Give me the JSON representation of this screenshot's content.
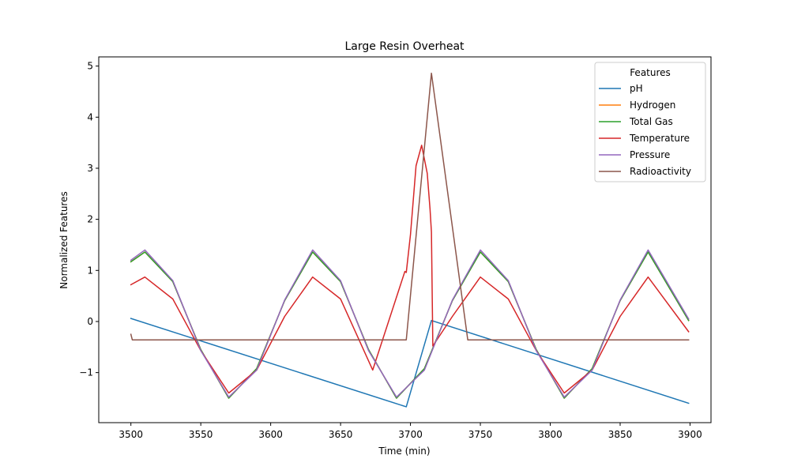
{
  "chart_data": {
    "type": "line",
    "title": "Large Resin Overheat",
    "xlabel": "Time (min)",
    "ylabel": "Normalized Features",
    "xlim": [
      3477,
      3915
    ],
    "ylim": [
      -1.98,
      5.18
    ],
    "x_ticks": [
      3500,
      3550,
      3600,
      3650,
      3700,
      3750,
      3800,
      3850,
      3900
    ],
    "y_ticks": [
      -1,
      0,
      1,
      2,
      3,
      4,
      5
    ],
    "y_tick_labels": [
      "−1",
      "0",
      "1",
      "2",
      "3",
      "4",
      "5"
    ],
    "grid": false,
    "legend": {
      "title": "Features",
      "position": "top-right"
    },
    "series": [
      {
        "name": "pH",
        "color": "#1f77b4",
        "points": [
          [
            3500,
            0.06
          ],
          [
            3697,
            -1.67
          ],
          [
            3715,
            0.02
          ],
          [
            3899,
            -1.6
          ]
        ]
      },
      {
        "name": "Hydrogen",
        "color": "#ff7f0e",
        "points": [
          [
            3500,
            1.17
          ],
          [
            3510,
            1.36
          ],
          [
            3530,
            0.78
          ],
          [
            3550,
            -0.55
          ],
          [
            3570,
            -1.5
          ],
          [
            3590,
            -0.92
          ],
          [
            3610,
            0.41
          ],
          [
            3630,
            1.36
          ],
          [
            3650,
            0.78
          ],
          [
            3670,
            -0.55
          ],
          [
            3690,
            -1.5
          ],
          [
            3710,
            -0.92
          ],
          [
            3730,
            0.41
          ],
          [
            3750,
            1.36
          ],
          [
            3770,
            0.78
          ],
          [
            3790,
            -0.55
          ],
          [
            3810,
            -1.5
          ],
          [
            3830,
            -0.92
          ],
          [
            3850,
            0.41
          ],
          [
            3870,
            1.36
          ],
          [
            3899,
            0.02
          ]
        ]
      },
      {
        "name": "Total Gas",
        "color": "#2ca02c",
        "points": [
          [
            3500,
            1.17
          ],
          [
            3510,
            1.36
          ],
          [
            3530,
            0.78
          ],
          [
            3550,
            -0.55
          ],
          [
            3570,
            -1.5
          ],
          [
            3590,
            -0.92
          ],
          [
            3610,
            0.41
          ],
          [
            3630,
            1.36
          ],
          [
            3650,
            0.78
          ],
          [
            3670,
            -0.55
          ],
          [
            3690,
            -1.5
          ],
          [
            3710,
            -0.92
          ],
          [
            3730,
            0.41
          ],
          [
            3750,
            1.36
          ],
          [
            3770,
            0.78
          ],
          [
            3790,
            -0.55
          ],
          [
            3810,
            -1.5
          ],
          [
            3830,
            -0.92
          ],
          [
            3850,
            0.41
          ],
          [
            3870,
            1.36
          ],
          [
            3899,
            0.02
          ]
        ]
      },
      {
        "name": "Temperature",
        "color": "#d62728",
        "points": [
          [
            3500,
            0.72
          ],
          [
            3510,
            0.87
          ],
          [
            3530,
            0.44
          ],
          [
            3550,
            -0.57
          ],
          [
            3570,
            -1.4
          ],
          [
            3590,
            -0.95
          ],
          [
            3610,
            0.1
          ],
          [
            3630,
            0.87
          ],
          [
            3650,
            0.44
          ],
          [
            3673,
            -0.95
          ],
          [
            3696,
            0.98
          ],
          [
            3697,
            0.96
          ],
          [
            3700,
            1.7
          ],
          [
            3704,
            3.05
          ],
          [
            3708,
            3.45
          ],
          [
            3712,
            2.9
          ],
          [
            3714,
            2.2
          ],
          [
            3715,
            1.75
          ],
          [
            3716,
            -0.48
          ],
          [
            3730,
            0.1
          ],
          [
            3750,
            0.87
          ],
          [
            3770,
            0.44
          ],
          [
            3790,
            -0.57
          ],
          [
            3810,
            -1.4
          ],
          [
            3830,
            -0.95
          ],
          [
            3850,
            0.1
          ],
          [
            3870,
            0.87
          ],
          [
            3899,
            -0.2
          ]
        ]
      },
      {
        "name": "Pressure",
        "color": "#9467bd",
        "points": [
          [
            3500,
            1.2
          ],
          [
            3510,
            1.4
          ],
          [
            3530,
            0.8
          ],
          [
            3550,
            -0.57
          ],
          [
            3570,
            -1.48
          ],
          [
            3590,
            -0.95
          ],
          [
            3610,
            0.42
          ],
          [
            3630,
            1.4
          ],
          [
            3650,
            0.8
          ],
          [
            3670,
            -0.57
          ],
          [
            3690,
            -1.48
          ],
          [
            3710,
            -0.95
          ],
          [
            3730,
            0.42
          ],
          [
            3750,
            1.4
          ],
          [
            3770,
            0.8
          ],
          [
            3790,
            -0.57
          ],
          [
            3810,
            -1.48
          ],
          [
            3830,
            -0.95
          ],
          [
            3850,
            0.42
          ],
          [
            3870,
            1.4
          ],
          [
            3899,
            0.05
          ]
        ]
      },
      {
        "name": "Radioactivity",
        "color": "#8c564b",
        "points": [
          [
            3500,
            -0.25
          ],
          [
            3501,
            -0.36
          ],
          [
            3697,
            -0.36
          ],
          [
            3715,
            4.86
          ],
          [
            3741,
            -0.36
          ],
          [
            3899,
            -0.36
          ]
        ]
      }
    ]
  }
}
